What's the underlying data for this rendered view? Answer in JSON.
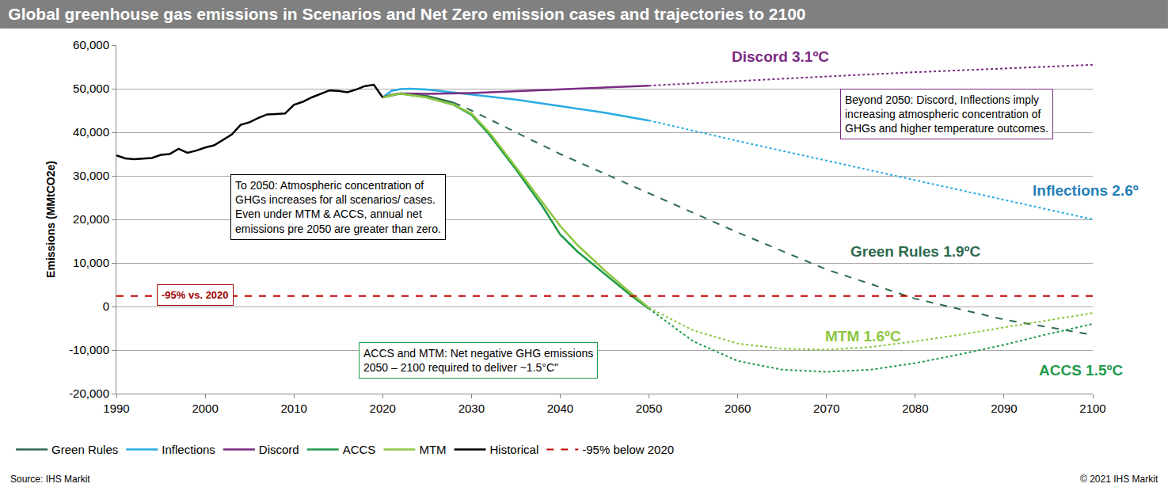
{
  "chart_data": {
    "type": "line",
    "title": "Global greenhouse gas emissions in Scenarios and Net Zero emission cases and trajectories to 2100",
    "y_label": "Emissions (MMtCO2e)",
    "xlim": [
      1990,
      2100
    ],
    "xticks": [
      1990,
      2000,
      2010,
      2020,
      2030,
      2040,
      2050,
      2060,
      2070,
      2080,
      2090,
      2100
    ],
    "ylim": [
      -20000,
      60000
    ],
    "yticks": [
      {
        "value": -20000,
        "label": "-20,000"
      },
      {
        "value": -10000,
        "label": "-10,000"
      },
      0,
      {
        "value": 10000,
        "label": "10,000"
      },
      {
        "value": 20000,
        "label": "20,000"
      },
      {
        "value": 30000,
        "label": "30,000"
      },
      {
        "value": 40000,
        "label": "40,000"
      },
      {
        "value": 50000,
        "label": "50,000"
      },
      {
        "value": 60000,
        "label": "60,000"
      }
    ],
    "grid": true,
    "legend": "bottom",
    "series": [
      {
        "name": "Green Rules",
        "color": "#2f6b4f",
        "line_style": "solid",
        "x": [
          2020,
          2022,
          2025,
          2028
        ],
        "values": [
          48000,
          48900,
          48300,
          46800
        ]
      },
      {
        "name": "Green Rules",
        "color": "#2f6b4f",
        "line_style": "dash",
        "x": [
          2028,
          2030,
          2035,
          2040,
          2045,
          2050,
          2055,
          2060,
          2070,
          2080,
          2090,
          2100
        ],
        "values": [
          46800,
          45000,
          40000,
          35000,
          30500,
          26000,
          21500,
          17000,
          8500,
          1800,
          -3000,
          -6500
        ]
      },
      {
        "name": "Inflections",
        "color": "#29abe2",
        "line_style": "solid",
        "x": [
          2020,
          2021,
          2022,
          2023,
          2025,
          2030,
          2035,
          2040,
          2045,
          2050
        ],
        "values": [
          48000,
          49500,
          49900,
          50000,
          49800,
          48700,
          47500,
          46000,
          44500,
          42700
        ]
      },
      {
        "name": "Inflections",
        "color": "#29abe2",
        "line_style": "dot",
        "x": [
          2050,
          2060,
          2070,
          2080,
          2090,
          2100
        ],
        "values": [
          42700,
          38000,
          33500,
          29000,
          24500,
          20000
        ]
      },
      {
        "name": "Discord",
        "color": "#7b2c83",
        "line_style": "solid",
        "x": [
          2020,
          2021,
          2022,
          2025,
          2030,
          2035,
          2040,
          2045,
          2050
        ],
        "values": [
          48000,
          48600,
          48900,
          48800,
          49000,
          49400,
          49800,
          50300,
          50700
        ]
      },
      {
        "name": "Discord",
        "color": "#7b2c83",
        "line_style": "dot",
        "x": [
          2050,
          2060,
          2070,
          2080,
          2090,
          2100
        ],
        "values": [
          50700,
          51800,
          52800,
          53800,
          54700,
          55500
        ]
      },
      {
        "name": "ACCS",
        "color": "#1f9a4c",
        "line_style": "solid",
        "x": [
          2020,
          2022,
          2025,
          2028,
          2030,
          2032,
          2035,
          2038,
          2040,
          2042,
          2045,
          2048,
          2050
        ],
        "values": [
          48000,
          48900,
          48000,
          46300,
          44000,
          39500,
          31500,
          23000,
          16500,
          12500,
          7500,
          2500,
          -500
        ]
      },
      {
        "name": "ACCS",
        "color": "#1f9a4c",
        "line_style": "dot",
        "x": [
          2050,
          2055,
          2060,
          2065,
          2070,
          2075,
          2080,
          2085,
          2090,
          2095,
          2100
        ],
        "values": [
          -500,
          -8000,
          -12500,
          -14500,
          -15000,
          -14500,
          -13000,
          -11000,
          -8800,
          -6300,
          -4000
        ]
      },
      {
        "name": "MTM",
        "color": "#8dc63f",
        "line_style": "solid",
        "x": [
          2020,
          2022,
          2025,
          2028,
          2030,
          2032,
          2035,
          2038,
          2040,
          2042,
          2045,
          2048,
          2050
        ],
        "values": [
          48000,
          48900,
          48000,
          46300,
          44300,
          40000,
          32000,
          24000,
          18500,
          14000,
          8300,
          3000,
          -300
        ]
      },
      {
        "name": "MTM",
        "color": "#8dc63f",
        "line_style": "dot",
        "x": [
          2050,
          2055,
          2060,
          2065,
          2070,
          2075,
          2080,
          2085,
          2090,
          2095,
          2100
        ],
        "values": [
          -300,
          -5500,
          -8500,
          -9700,
          -9900,
          -9300,
          -8000,
          -6500,
          -4800,
          -3200,
          -1500
        ]
      },
      {
        "name": "Historical",
        "color": "#000000",
        "line_style": "solid",
        "x": [
          1990,
          1991,
          1992,
          1993,
          1994,
          1995,
          1996,
          1997,
          1998,
          1999,
          2000,
          2001,
          2002,
          2003,
          2004,
          2005,
          2006,
          2007,
          2008,
          2009,
          2010,
          2011,
          2012,
          2013,
          2014,
          2015,
          2016,
          2017,
          2018,
          2019,
          2020
        ],
        "values": [
          34700,
          34000,
          33800,
          34000,
          34100,
          34800,
          35000,
          36200,
          35300,
          35800,
          36500,
          37000,
          38300,
          39500,
          41700,
          42300,
          43300,
          44100,
          44200,
          44300,
          46300,
          47000,
          48000,
          48800,
          49600,
          49500,
          49200,
          49800,
          50600,
          50900,
          48000
        ]
      },
      {
        "name": "-95% below 2020",
        "color": "#c00000",
        "line_style": "dash",
        "x": [
          1990,
          2100
        ],
        "values": [
          2400,
          2400
        ]
      }
    ],
    "annotations": [
      {
        "text": "Discord 3.1ºC",
        "color": "#7b2c83"
      },
      {
        "text": "Inflections 2.6º",
        "color": "#1f7fb8"
      },
      {
        "text": "Green Rules 1.9ºC",
        "color": "#2f6b4f"
      },
      {
        "text": "MTM 1.6ºC",
        "color": "#8dc63f"
      },
      {
        "text": "ACCS 1.5ºC",
        "color": "#1f9a4c"
      },
      {
        "text": "-95% vs. 2020",
        "color": "#a00000"
      },
      {
        "lines": [
          "To 2050: Atmospheric concentration of",
          "GHGs increases for all scenarios/ cases.",
          "Even under MTM & ACCS, annual net",
          "emissions pre 2050 are greater than zero."
        ],
        "color": "#000000"
      },
      {
        "lines": [
          "Beyond 2050: Discord, Inflections imply",
          "increasing atmospheric concentration of",
          "GHGs and higher temperature outcomes."
        ],
        "color": "#7b2c83"
      },
      {
        "lines": [
          "ACCS and MTM: Net negative GHG emissions",
          "2050 – 2100 required to deliver ~1.5°C\""
        ],
        "color": "#1f9a4c"
      }
    ],
    "source": "Source: IHS Markit",
    "copyright": "© 2021 IHS Markit"
  }
}
